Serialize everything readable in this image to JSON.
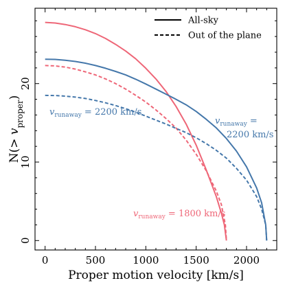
{
  "chart_data": {
    "type": "line",
    "xlabel": "Proper motion velocity [km/s]",
    "ylabel": "N(> v_proper)",
    "xlim": [
      -100,
      2300
    ],
    "ylim": [
      -1.2,
      29.6
    ],
    "xticks": [
      0,
      500,
      1000,
      1500,
      2000
    ],
    "yticks": [
      0,
      10,
      20
    ],
    "legend": {
      "position": "top-right",
      "entries": [
        {
          "label": "All-sky",
          "linestyle": "solid"
        },
        {
          "label": "Out of the plane",
          "linestyle": "dashed"
        }
      ]
    },
    "series": [
      {
        "color": "#EE6677",
        "linestyle": "solid",
        "x": [
          0,
          100,
          200,
          300,
          400,
          500,
          600,
          700,
          800,
          900,
          1000,
          1100,
          1200,
          1300,
          1400,
          1500,
          1600,
          1700,
          1750,
          1780,
          1800
        ],
        "y": [
          27.8,
          27.72,
          27.53,
          27.25,
          26.86,
          26.37,
          25.75,
          25.0,
          24.15,
          23.15,
          21.95,
          20.6,
          19.0,
          17.1,
          14.85,
          12.15,
          9.0,
          5.6,
          3.5,
          2.0,
          0.0
        ]
      },
      {
        "color": "#EE6677",
        "linestyle": "dashed",
        "x": [
          0,
          100,
          200,
          300,
          400,
          500,
          600,
          700,
          800,
          900,
          1000,
          1100,
          1200,
          1300,
          1400,
          1500,
          1600,
          1700,
          1750,
          1790,
          1800
        ],
        "y": [
          22.3,
          22.25,
          22.1,
          21.85,
          21.5,
          21.1,
          20.6,
          20.0,
          19.3,
          18.5,
          17.65,
          16.65,
          15.55,
          14.35,
          12.8,
          11.0,
          8.9,
          6.3,
          4.6,
          2.0,
          0.0
        ]
      },
      {
        "color": "#4477AA",
        "linestyle": "solid",
        "x": [
          0,
          100,
          200,
          300,
          400,
          500,
          600,
          700,
          800,
          900,
          1000,
          1100,
          1200,
          1300,
          1400,
          1500,
          1600,
          1700,
          1800,
          1900,
          2000,
          2100,
          2150,
          2190,
          2200
        ],
        "y": [
          23.1,
          23.08,
          22.98,
          22.82,
          22.6,
          22.3,
          21.95,
          21.55,
          21.1,
          20.55,
          19.95,
          19.3,
          18.65,
          18.0,
          17.3,
          16.45,
          15.45,
          14.35,
          13.0,
          11.4,
          9.4,
          6.7,
          4.8,
          2.0,
          0.0
        ]
      },
      {
        "color": "#4477AA",
        "linestyle": "dashed",
        "x": [
          0,
          100,
          200,
          300,
          400,
          500,
          600,
          700,
          800,
          900,
          1000,
          1100,
          1200,
          1300,
          1400,
          1500,
          1600,
          1700,
          1800,
          1900,
          2000,
          2100,
          2150,
          2190,
          2200
        ],
        "y": [
          18.5,
          18.48,
          18.4,
          18.28,
          18.1,
          17.85,
          17.55,
          17.2,
          16.8,
          16.35,
          15.85,
          15.35,
          14.85,
          14.3,
          13.75,
          13.1,
          12.35,
          11.5,
          10.5,
          9.2,
          7.7,
          5.6,
          4.0,
          2.0,
          0.0
        ]
      }
    ],
    "annotations": [
      {
        "id": "blue-left",
        "text": "v_runaway = 2200 km/s",
        "color": "#4477AA"
      },
      {
        "id": "blue-right",
        "lines": [
          "v_runaway =",
          "2200 km/s"
        ],
        "color": "#4477AA"
      },
      {
        "id": "red",
        "text": "v_runaway = 1800 km/s",
        "color": "#EE6677"
      }
    ]
  }
}
